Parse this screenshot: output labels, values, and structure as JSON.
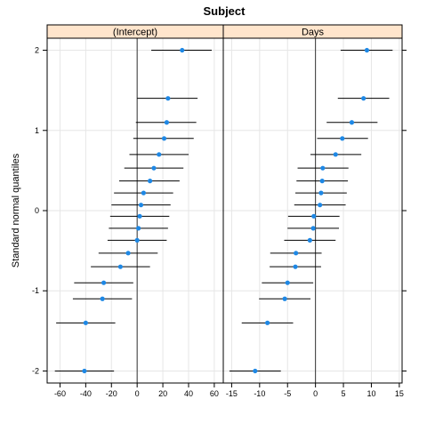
{
  "chart_data": {
    "type": "scatter",
    "title": "Subject",
    "ylabel": "Standard normal quantiles",
    "ylim": [
      -2.15,
      2.15
    ],
    "y_ticks": [
      -2,
      -1,
      0,
      1,
      2
    ],
    "grid": true,
    "colors": {
      "strip": "#ffe5cc",
      "point": "#1e88e5",
      "grid": "#e6e6e6",
      "line": "#000000"
    },
    "panels": [
      {
        "name": "(Intercept)",
        "xlim": [
          -70,
          67
        ],
        "x_ticks": [
          -60,
          -40,
          -20,
          0,
          20,
          40,
          60
        ],
        "points": [
          {
            "y": 2.0,
            "x": 35,
            "lo": 11,
            "hi": 58
          },
          {
            "y": 1.4,
            "x": 24,
            "lo": 0,
            "hi": 47
          },
          {
            "y": 1.1,
            "x": 23,
            "lo": -1,
            "hi": 46
          },
          {
            "y": 0.9,
            "x": 21,
            "lo": -3,
            "hi": 44
          },
          {
            "y": 0.7,
            "x": 17,
            "lo": -6,
            "hi": 40
          },
          {
            "y": 0.53,
            "x": 13,
            "lo": -10,
            "hi": 36
          },
          {
            "y": 0.37,
            "x": 10,
            "lo": -14,
            "hi": 33
          },
          {
            "y": 0.22,
            "x": 5,
            "lo": -18,
            "hi": 28
          },
          {
            "y": 0.07,
            "x": 3,
            "lo": -20,
            "hi": 26
          },
          {
            "y": -0.07,
            "x": 2,
            "lo": -21,
            "hi": 25
          },
          {
            "y": -0.22,
            "x": 1,
            "lo": -22,
            "hi": 24
          },
          {
            "y": -0.37,
            "x": 0,
            "lo": -23,
            "hi": 23
          },
          {
            "y": -0.53,
            "x": -7,
            "lo": -30,
            "hi": 16
          },
          {
            "y": -0.7,
            "x": -13,
            "lo": -36,
            "hi": 10
          },
          {
            "y": -0.9,
            "x": -26,
            "lo": -49,
            "hi": -3
          },
          {
            "y": -1.1,
            "x": -27,
            "lo": -50,
            "hi": -4
          },
          {
            "y": -1.4,
            "x": -40,
            "lo": -63,
            "hi": -17
          },
          {
            "y": -2.0,
            "x": -41,
            "lo": -64,
            "hi": -18
          }
        ]
      },
      {
        "name": "Days",
        "xlim": [
          -16.5,
          15.5
        ],
        "x_ticks": [
          -15,
          -10,
          -5,
          0,
          5,
          10,
          15
        ],
        "points": [
          {
            "y": 2.0,
            "x": 9.2,
            "lo": 4.5,
            "hi": 13.8
          },
          {
            "y": 1.4,
            "x": 8.6,
            "lo": 4.0,
            "hi": 13.2
          },
          {
            "y": 1.1,
            "x": 6.5,
            "lo": 2.0,
            "hi": 11.1
          },
          {
            "y": 0.9,
            "x": 4.8,
            "lo": 0.3,
            "hi": 9.4
          },
          {
            "y": 0.7,
            "x": 3.6,
            "lo": -0.9,
            "hi": 8.2
          },
          {
            "y": 0.53,
            "x": 1.3,
            "lo": -3.2,
            "hi": 5.9
          },
          {
            "y": 0.37,
            "x": 1.2,
            "lo": -3.4,
            "hi": 5.8
          },
          {
            "y": 0.22,
            "x": 1.0,
            "lo": -3.6,
            "hi": 5.6
          },
          {
            "y": 0.07,
            "x": 0.8,
            "lo": -3.8,
            "hi": 5.4
          },
          {
            "y": -0.07,
            "x": -0.3,
            "lo": -4.9,
            "hi": 4.3
          },
          {
            "y": -0.22,
            "x": -0.4,
            "lo": -5.0,
            "hi": 4.2
          },
          {
            "y": -0.37,
            "x": -1.0,
            "lo": -5.6,
            "hi": 3.6
          },
          {
            "y": -0.53,
            "x": -3.5,
            "lo": -8.1,
            "hi": 1.1
          },
          {
            "y": -0.7,
            "x": -3.6,
            "lo": -8.2,
            "hi": 1.0
          },
          {
            "y": -0.9,
            "x": -5.0,
            "lo": -9.6,
            "hi": -0.4
          },
          {
            "y": -1.1,
            "x": -5.5,
            "lo": -10.1,
            "hi": -0.9
          },
          {
            "y": -1.4,
            "x": -8.6,
            "lo": -13.2,
            "hi": -4.0
          },
          {
            "y": -2.0,
            "x": -10.8,
            "lo": -15.4,
            "hi": -6.2
          }
        ]
      }
    ]
  }
}
